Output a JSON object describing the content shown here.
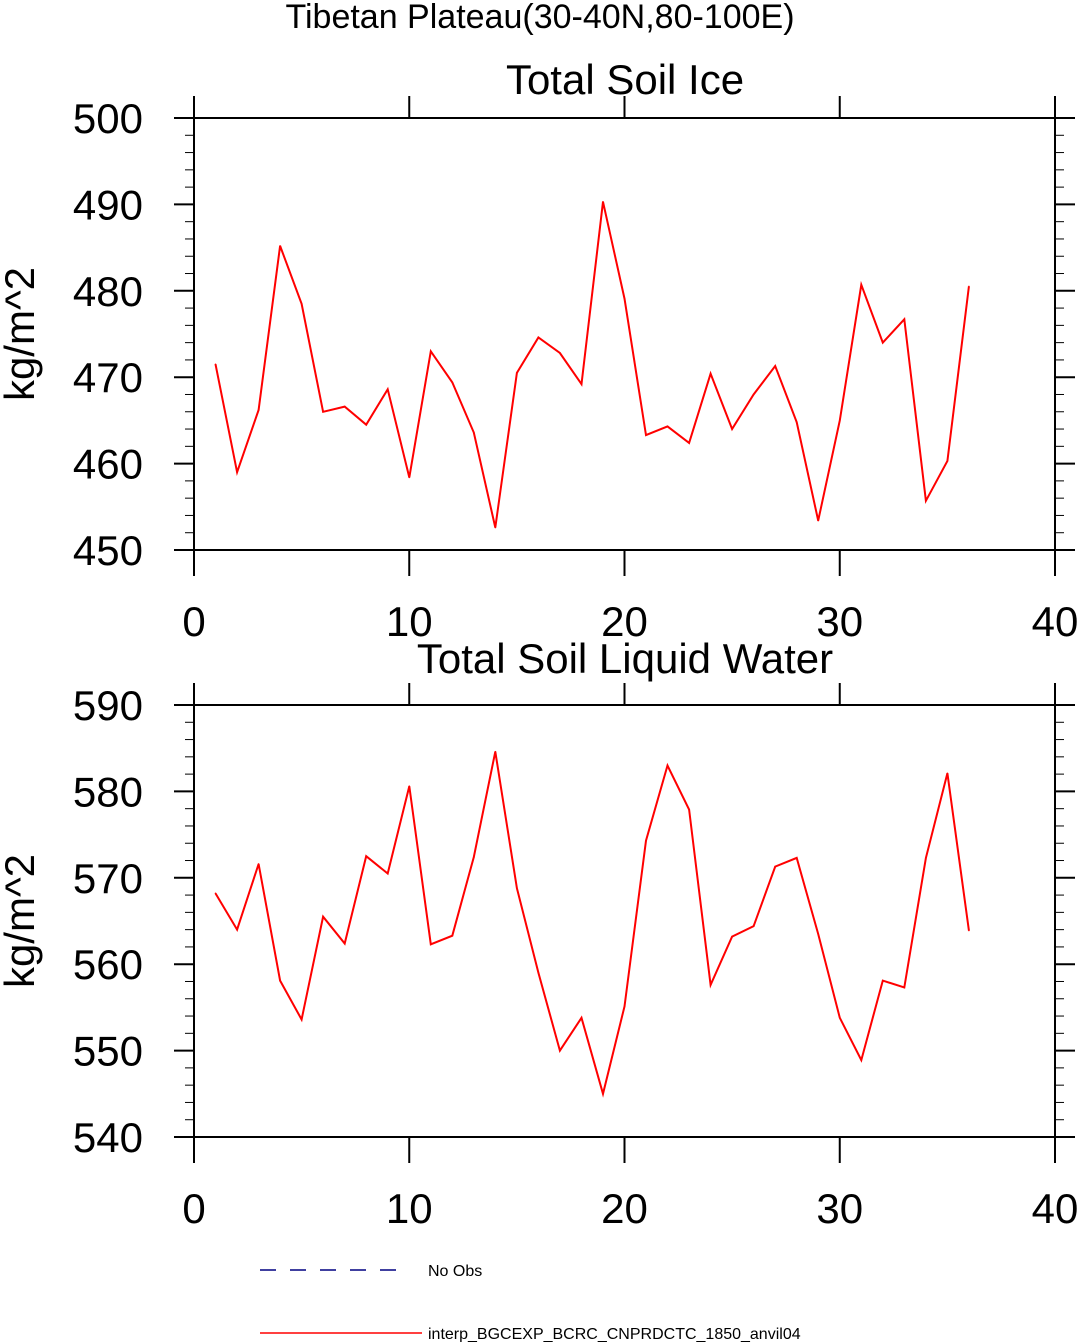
{
  "figure": {
    "title": "Tibetan Plateau(30-40N,80-100E)"
  },
  "chart_data": [
    {
      "type": "line",
      "title": "Total Soil Ice",
      "ylabel": "kg/m^2",
      "xlabel": "",
      "xlim": [
        0,
        40
      ],
      "ylim": [
        450,
        500
      ],
      "xticks": [
        0,
        10,
        20,
        30,
        40
      ],
      "yticks": [
        450,
        460,
        470,
        480,
        490,
        500
      ],
      "grid": false,
      "series": [
        {
          "name": "interp_BGCEXP_BCRC_CNPRDCTC_1850_anvil04",
          "color": "#ff0000",
          "x": [
            1,
            2,
            3,
            4,
            5,
            6,
            7,
            8,
            9,
            10,
            11,
            12,
            13,
            14,
            15,
            16,
            17,
            18,
            19,
            20,
            21,
            22,
            23,
            24,
            25,
            26,
            27,
            28,
            29,
            30,
            31,
            32,
            33,
            34,
            35,
            36
          ],
          "values": [
            471.5,
            459.0,
            466.2,
            485.2,
            478.5,
            466.0,
            466.6,
            464.5,
            468.6,
            458.4,
            473.0,
            469.4,
            463.6,
            452.6,
            470.5,
            474.6,
            472.8,
            469.2,
            490.3,
            479.1,
            463.3,
            464.3,
            462.4,
            470.4,
            464.0,
            468.0,
            471.3,
            464.8,
            453.4,
            465.0,
            480.7,
            474.0,
            476.7,
            455.7,
            460.3,
            480.5
          ]
        }
      ]
    },
    {
      "type": "line",
      "title": "Total Soil Liquid Water",
      "ylabel": "kg/m^2",
      "xlabel": "",
      "xlim": [
        0,
        40
      ],
      "ylim": [
        540,
        590
      ],
      "xticks": [
        0,
        10,
        20,
        30,
        40
      ],
      "yticks": [
        540,
        550,
        560,
        570,
        580,
        590
      ],
      "grid": false,
      "series": [
        {
          "name": "interp_BGCEXP_BCRC_CNPRDCTC_1850_anvil04",
          "color": "#ff0000",
          "x": [
            1,
            2,
            3,
            4,
            5,
            6,
            7,
            8,
            9,
            10,
            11,
            12,
            13,
            14,
            15,
            16,
            17,
            18,
            19,
            20,
            21,
            22,
            23,
            24,
            25,
            26,
            27,
            28,
            29,
            30,
            31,
            32,
            33,
            34,
            35,
            36
          ],
          "values": [
            568.2,
            564.0,
            571.6,
            558.1,
            553.6,
            565.5,
            562.4,
            572.5,
            570.5,
            580.6,
            562.3,
            563.3,
            572.4,
            584.6,
            568.8,
            559.0,
            550.0,
            553.8,
            545.0,
            555.1,
            574.3,
            583.0,
            577.9,
            557.6,
            563.2,
            564.4,
            571.3,
            572.3,
            563.5,
            553.8,
            548.9,
            558.1,
            557.3,
            572.3,
            582.1,
            563.9
          ]
        }
      ]
    }
  ],
  "legend": {
    "placement": "bottom",
    "entries": [
      {
        "label": "No Obs",
        "color": "#000080",
        "dash": "dashed"
      },
      {
        "label": "interp_BGCEXP_BCRC_CNPRDCTC_1850_anvil04",
        "color": "#ff0000",
        "dash": "solid"
      }
    ]
  }
}
